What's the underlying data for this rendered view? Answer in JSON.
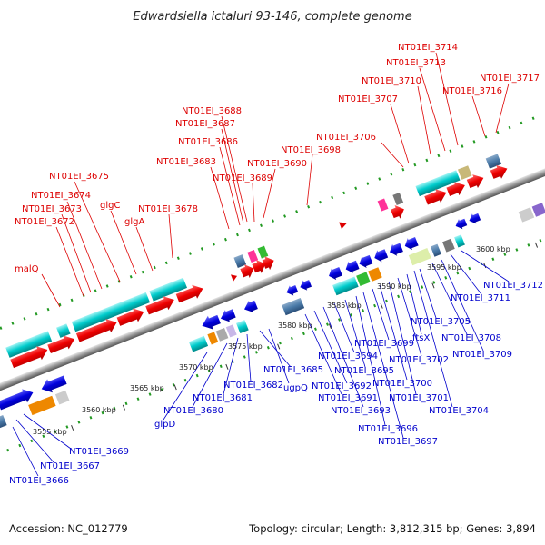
{
  "title": "Edwardsiella ictaluri 93-146, complete genome",
  "footer": {
    "accession": "Accession: NC_012779",
    "summary": "Topology: circular; Length: 3,812,315 bp; Genes: 3,894"
  },
  "scale_ticks": [
    {
      "label": "3555 kbp",
      "kbp": 3555
    },
    {
      "label": "3560 kbp",
      "kbp": 3560
    },
    {
      "label": "3565 kbp",
      "kbp": 3565
    },
    {
      "label": "3570 kbp",
      "kbp": 3570
    },
    {
      "label": "3575 kbp",
      "kbp": 3575
    },
    {
      "label": "3580 kbp",
      "kbp": 3580
    },
    {
      "label": "3585 kbp",
      "kbp": 3585
    },
    {
      "label": "3590 kbp",
      "kbp": 3590
    },
    {
      "label": "3595 kbp",
      "kbp": 3595
    },
    {
      "label": "3600 kbp",
      "kbp": 3600
    }
  ],
  "upper_labels": [
    "malQ",
    "NT01EI_3672",
    "NT01EI_3673",
    "NT01EI_3674",
    "NT01EI_3675",
    "glgC",
    "glgA",
    "NT01EI_3678",
    "NT01EI_3683",
    "NT01EI_3686",
    "NT01EI_3687",
    "NT01EI_3688",
    "NT01EI_3689",
    "NT01EI_3690",
    "NT01EI_3698",
    "NT01EI_3706",
    "NT01EI_3707",
    "NT01EI_3710",
    "NT01EI_3713",
    "NT01EI_3714",
    "NT01EI_3716",
    "NT01EI_3717"
  ],
  "lower_labels": [
    "NT01EI_3666",
    "NT01EI_3667",
    "NT01EI_3669",
    "glpD",
    "NT01EI_3680",
    "NT01EI_3681",
    "NT01EI_3682",
    "ugpQ",
    "NT01EI_3685",
    "NT01EI_3691",
    "NT01EI_3692",
    "NT01EI_3693",
    "NT01EI_3694",
    "NT01EI_3695",
    "NT01EI_3696",
    "NT01EI_3697",
    "NT01EI_3699",
    "NT01EI_3700",
    "NT01EI_3701",
    "NT01EI_3702",
    "ftsX",
    "NT01EI_3704",
    "NT01EI_3705",
    "NT01EI_3708",
    "NT01EI_3709",
    "NT01EI_3711",
    "NT01EI_3712"
  ],
  "colors": {
    "forward_strand": "#e60000",
    "reverse_strand": "#0000dd",
    "forward_label": "#dd0000",
    "reverse_label": "#0000cc",
    "backbone": "#999999",
    "cds_box": "#00cccc",
    "rna_box": "#ff3399",
    "tick_green": "#229922"
  }
}
